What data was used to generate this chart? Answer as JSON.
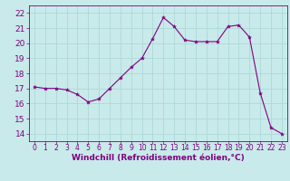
{
  "x": [
    0,
    1,
    2,
    3,
    4,
    5,
    6,
    7,
    8,
    9,
    10,
    11,
    12,
    13,
    14,
    15,
    16,
    17,
    18,
    19,
    20,
    21,
    22,
    23
  ],
  "y": [
    17.1,
    17.0,
    17.0,
    16.9,
    16.6,
    16.1,
    16.3,
    17.0,
    17.7,
    18.4,
    19.0,
    20.3,
    21.7,
    21.1,
    20.2,
    20.1,
    20.1,
    20.1,
    21.1,
    21.2,
    20.4,
    16.7,
    14.4,
    14.0
  ],
  "line_color": "#800080",
  "marker": "*",
  "marker_size": 3,
  "bg_color": "#c8eaea",
  "grid_color": "#aed8d8",
  "xlabel": "Windchill (Refroidissement éolien,°C)",
  "xlabel_color": "#800080",
  "tick_color": "#800080",
  "label_color": "#800080",
  "ylim": [
    13.5,
    22.5
  ],
  "xlim": [
    -0.5,
    23.5
  ],
  "yticks": [
    14,
    15,
    16,
    17,
    18,
    19,
    20,
    21,
    22
  ],
  "xticks": [
    0,
    1,
    2,
    3,
    4,
    5,
    6,
    7,
    8,
    9,
    10,
    11,
    12,
    13,
    14,
    15,
    16,
    17,
    18,
    19,
    20,
    21,
    22,
    23
  ],
  "tick_fontsize": 5.5,
  "xlabel_fontsize": 6.5,
  "ytick_fontsize": 6.5
}
